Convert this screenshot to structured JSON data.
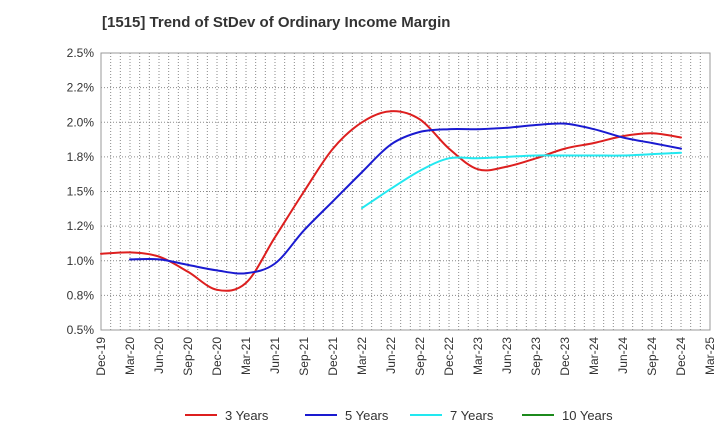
{
  "chart_data": {
    "type": "line",
    "title": "[1515]  Trend of StDev of Ordinary Income Margin",
    "xlabel": "",
    "ylabel": "",
    "ylim": [
      0.5,
      2.5
    ],
    "yticks": [
      "0.5%",
      "0.8%",
      "1.0%",
      "1.2%",
      "1.5%",
      "1.8%",
      "2.0%",
      "2.2%",
      "2.5%"
    ],
    "categories": [
      "Dec-19",
      "Mar-20",
      "Jun-20",
      "Sep-20",
      "Dec-20",
      "Mar-21",
      "Jun-21",
      "Sep-21",
      "Dec-21",
      "Mar-22",
      "Jun-22",
      "Sep-22",
      "Dec-22",
      "Mar-23",
      "Jun-23",
      "Sep-23",
      "Dec-23",
      "Mar-24",
      "Jun-24",
      "Sep-24",
      "Dec-24",
      "Mar-25"
    ],
    "grid": true,
    "legend_position": "bottom",
    "series": [
      {
        "name": "3 Years",
        "color": "#dd1f1f",
        "values": [
          1.05,
          1.06,
          1.03,
          0.92,
          0.79,
          0.84,
          1.17,
          1.5,
          1.81,
          2.0,
          2.08,
          2.02,
          1.81,
          1.66,
          1.68,
          1.74,
          1.81,
          1.85,
          1.9,
          1.92,
          1.89,
          null
        ]
      },
      {
        "name": "5 Years",
        "color": "#1a1ad0",
        "values": [
          null,
          1.01,
          1.01,
          0.97,
          0.93,
          0.91,
          0.98,
          1.22,
          1.43,
          1.64,
          1.84,
          1.93,
          1.95,
          1.95,
          1.96,
          1.98,
          1.99,
          1.95,
          1.89,
          1.85,
          1.81,
          null
        ]
      },
      {
        "name": "7 Years",
        "color": "#22e8f0",
        "values": [
          null,
          null,
          null,
          null,
          null,
          null,
          null,
          null,
          null,
          1.38,
          1.52,
          1.65,
          1.74,
          1.74,
          1.75,
          1.76,
          1.76,
          1.76,
          1.76,
          1.77,
          1.78,
          null
        ]
      },
      {
        "name": "10 Years",
        "color": "#1c8a1c",
        "values": [
          null,
          null,
          null,
          null,
          null,
          null,
          null,
          null,
          null,
          null,
          null,
          null,
          null,
          null,
          null,
          null,
          null,
          null,
          null,
          null,
          null,
          null
        ]
      }
    ]
  }
}
